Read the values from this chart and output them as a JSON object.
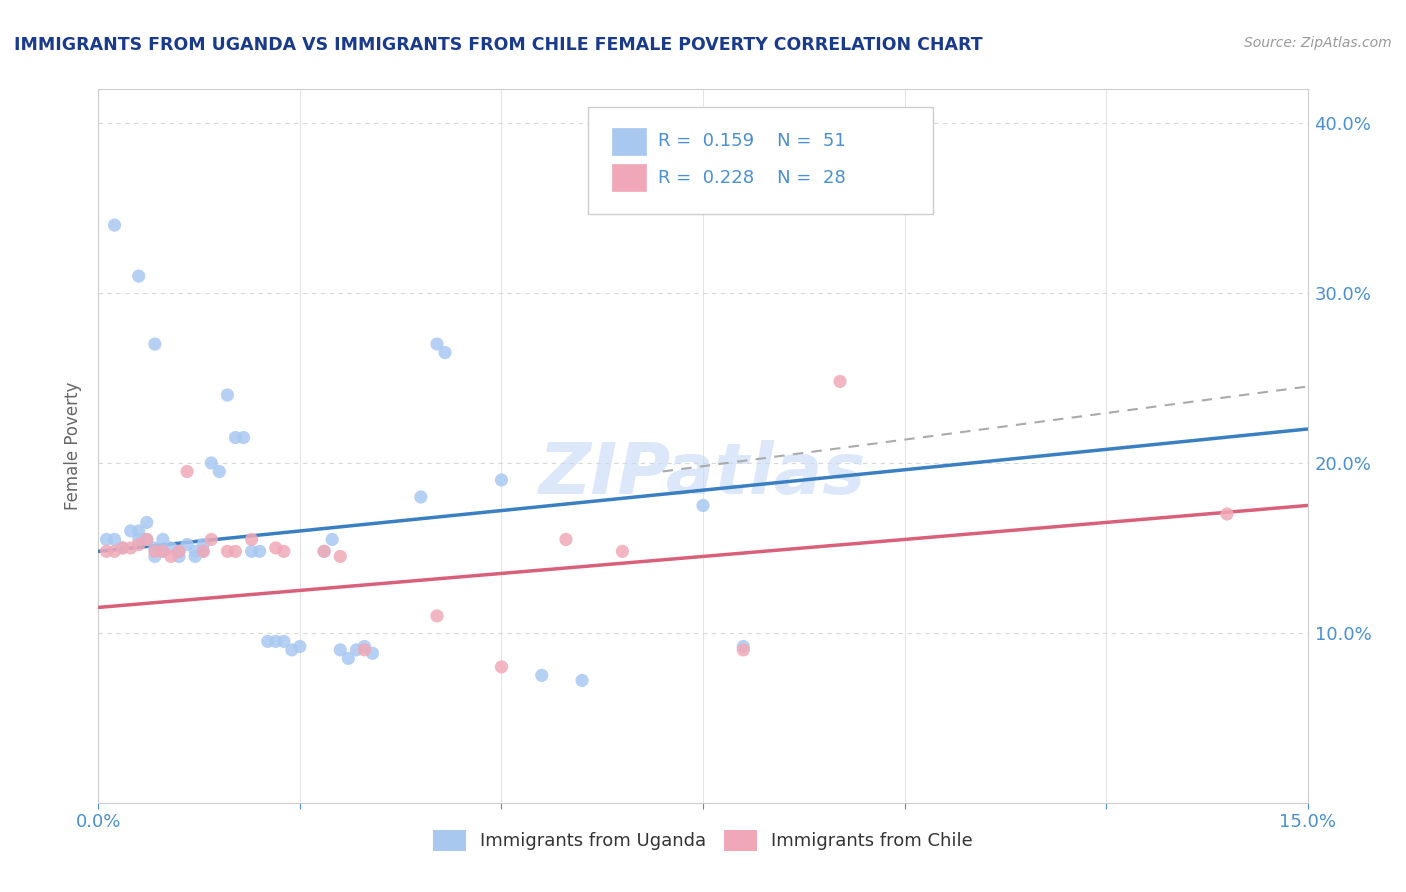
{
  "title": "IMMIGRANTS FROM UGANDA VS IMMIGRANTS FROM CHILE FEMALE POVERTY CORRELATION CHART",
  "source": "Source: ZipAtlas.com",
  "ylabel": "Female Poverty",
  "xlim": [
    0.0,
    0.15
  ],
  "ylim": [
    0.0,
    0.42
  ],
  "xticks": [
    0.0,
    0.025,
    0.05,
    0.075,
    0.1,
    0.125,
    0.15
  ],
  "xticklabels": [
    "0.0%",
    "",
    "",
    "",
    "",
    "",
    "15.0%"
  ],
  "yticks": [
    0.0,
    0.1,
    0.2,
    0.3,
    0.4
  ],
  "yticklabels_right": [
    "",
    "10.0%",
    "20.0%",
    "30.0%",
    "40.0%"
  ],
  "uganda_color": "#a8c8f0",
  "chile_color": "#f0a8b8",
  "uganda_line_color": "#3a7fc1",
  "chile_line_color": "#d9607a",
  "gray_dash_color": "#aaaaaa",
  "tick_label_color": "#4a90d0",
  "title_color": "#1a3a8a",
  "source_color": "#999999",
  "watermark_color": "#c5daf5",
  "uganda_scatter": [
    [
      0.001,
      0.155
    ],
    [
      0.002,
      0.155
    ],
    [
      0.003,
      0.15
    ],
    [
      0.004,
      0.16
    ],
    [
      0.005,
      0.155
    ],
    [
      0.005,
      0.16
    ],
    [
      0.006,
      0.165
    ],
    [
      0.006,
      0.155
    ],
    [
      0.007,
      0.15
    ],
    [
      0.007,
      0.145
    ],
    [
      0.008,
      0.155
    ],
    [
      0.008,
      0.148
    ],
    [
      0.009,
      0.15
    ],
    [
      0.01,
      0.148
    ],
    [
      0.01,
      0.145
    ],
    [
      0.011,
      0.152
    ],
    [
      0.012,
      0.148
    ],
    [
      0.012,
      0.145
    ],
    [
      0.013,
      0.152
    ],
    [
      0.013,
      0.148
    ],
    [
      0.014,
      0.2
    ],
    [
      0.015,
      0.195
    ],
    [
      0.016,
      0.24
    ],
    [
      0.017,
      0.215
    ],
    [
      0.018,
      0.215
    ],
    [
      0.019,
      0.148
    ],
    [
      0.02,
      0.148
    ],
    [
      0.021,
      0.095
    ],
    [
      0.022,
      0.095
    ],
    [
      0.023,
      0.095
    ],
    [
      0.024,
      0.09
    ],
    [
      0.025,
      0.092
    ],
    [
      0.028,
      0.148
    ],
    [
      0.029,
      0.155
    ],
    [
      0.03,
      0.09
    ],
    [
      0.031,
      0.085
    ],
    [
      0.032,
      0.09
    ],
    [
      0.033,
      0.092
    ],
    [
      0.034,
      0.088
    ],
    [
      0.04,
      0.18
    ],
    [
      0.042,
      0.27
    ],
    [
      0.043,
      0.265
    ],
    [
      0.05,
      0.19
    ],
    [
      0.055,
      0.075
    ],
    [
      0.06,
      0.072
    ],
    [
      0.075,
      0.175
    ],
    [
      0.08,
      0.092
    ],
    [
      0.002,
      0.34
    ],
    [
      0.005,
      0.31
    ],
    [
      0.007,
      0.27
    ]
  ],
  "chile_scatter": [
    [
      0.001,
      0.148
    ],
    [
      0.002,
      0.148
    ],
    [
      0.003,
      0.15
    ],
    [
      0.004,
      0.15
    ],
    [
      0.005,
      0.152
    ],
    [
      0.006,
      0.155
    ],
    [
      0.007,
      0.148
    ],
    [
      0.008,
      0.148
    ],
    [
      0.009,
      0.145
    ],
    [
      0.01,
      0.148
    ],
    [
      0.011,
      0.195
    ],
    [
      0.013,
      0.148
    ],
    [
      0.014,
      0.155
    ],
    [
      0.016,
      0.148
    ],
    [
      0.017,
      0.148
    ],
    [
      0.019,
      0.155
    ],
    [
      0.022,
      0.15
    ],
    [
      0.023,
      0.148
    ],
    [
      0.028,
      0.148
    ],
    [
      0.03,
      0.145
    ],
    [
      0.033,
      0.09
    ],
    [
      0.042,
      0.11
    ],
    [
      0.05,
      0.08
    ],
    [
      0.058,
      0.155
    ],
    [
      0.065,
      0.148
    ],
    [
      0.08,
      0.09
    ],
    [
      0.092,
      0.248
    ],
    [
      0.14,
      0.17
    ]
  ]
}
